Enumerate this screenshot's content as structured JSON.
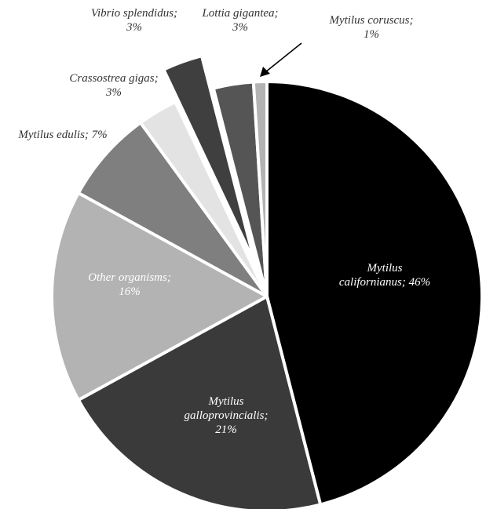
{
  "chart_data": {
    "type": "pie",
    "title": "",
    "series": [
      {
        "slices": [
          {
            "name": "Mytilus californianus",
            "value": 46,
            "label_line1": "Mytilus",
            "label_line2": "californianus; 46%",
            "color": "#000000",
            "label_color": "#ffffff",
            "exploded": false
          },
          {
            "name": "Mytilus galloprovincialis",
            "value": 21,
            "label_line1": "Mytilus",
            "label_line2": "galloprovincialis;",
            "label_line3": "21%",
            "color": "#3a3a3a",
            "label_color": "#ffffff",
            "exploded": false
          },
          {
            "name": "Other organisms",
            "value": 16,
            "label_line1": "Other organisms;",
            "label_line2": "16%",
            "color": "#b3b3b3",
            "label_color": "#ffffff",
            "exploded": false
          },
          {
            "name": "Mytilus edulis",
            "value": 7,
            "label_line1": "Mytilus edulis; 7%",
            "color": "#7f7f7f",
            "label_color": "#333333",
            "exploded": false
          },
          {
            "name": "Crassostrea gigas",
            "value": 3,
            "label_line1": "Crassostrea gigas;",
            "label_line2": "3%",
            "color": "#e3e3e3",
            "label_color": "#333333",
            "exploded": false
          },
          {
            "name": "Vibrio splendidus",
            "value": 3,
            "label_line1": "Vibrio splendidus;",
            "label_line2": "3%",
            "color": "#3f3f3f",
            "label_color": "#333333",
            "exploded": true
          },
          {
            "name": "Lottia gigantea",
            "value": 3,
            "label_line1": "Lottia gigantea;",
            "label_line2": "3%",
            "color": "#555555",
            "label_color": "#333333",
            "exploded": false
          },
          {
            "name": "Mytilus coruscus",
            "value": 1,
            "label_line1": "Mytilus coruscus;",
            "label_line2": "1%",
            "color": "#b3b3b3",
            "label_color": "#333333",
            "exploded": false
          }
        ]
      }
    ]
  }
}
